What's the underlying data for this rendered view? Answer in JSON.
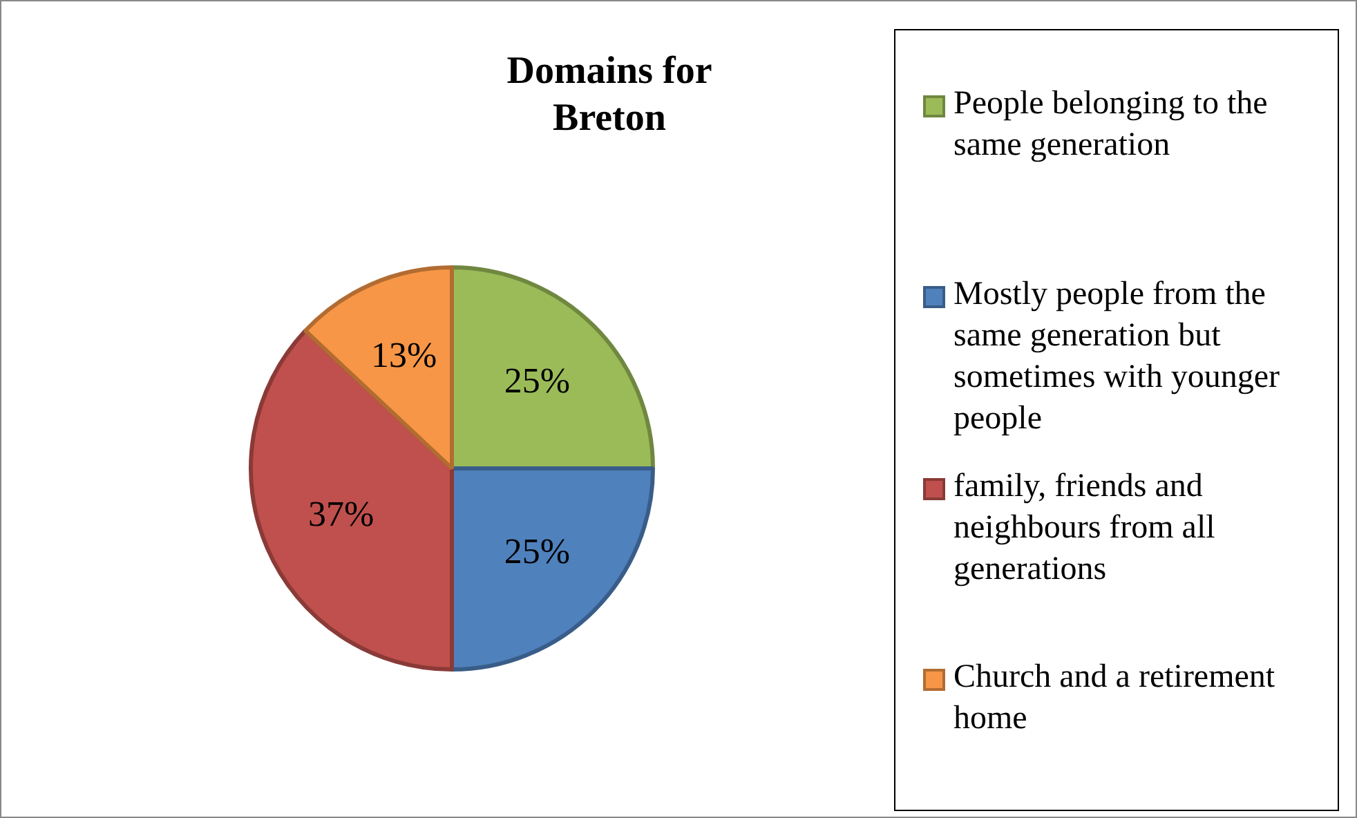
{
  "chart_data": {
    "type": "pie",
    "title": "Domains for Breton",
    "categories": [
      "People belonging to the same generation",
      "Mostly people from the same generation but sometimes with younger people",
      "family, friends and neighbours from all generations",
      "Church and a retirement home"
    ],
    "values": [
      25,
      25,
      37,
      13
    ],
    "colors": [
      "#9bbb59",
      "#4f81bd",
      "#c0504d",
      "#f79646"
    ],
    "value_labels": [
      "25%",
      "25%",
      "37%",
      "13%"
    ],
    "legend": "right"
  }
}
